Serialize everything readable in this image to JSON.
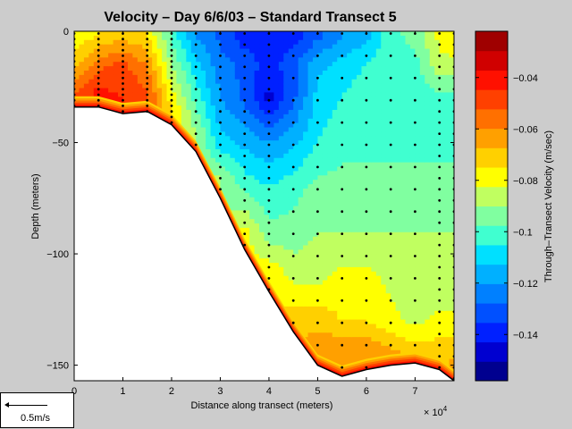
{
  "chart_data": {
    "type": "heatmap",
    "title": "Velocity – Day 6/6/03 – Standard Transect 5",
    "xlabel": "Distance along transect (meters)",
    "ylabel": "Depth (meters)",
    "x_exponent_label": "× 10",
    "x_exponent_power": "4",
    "xlim": [
      0,
      78000
    ],
    "ylim": [
      -157,
      0
    ],
    "xticks": [
      0,
      1,
      2,
      3,
      4,
      5,
      6,
      7
    ],
    "xtick_labels": [
      "0",
      "1",
      "2",
      "3",
      "4",
      "5",
      "6",
      "7"
    ],
    "yticks": [
      0,
      -50,
      -100,
      -150
    ],
    "ytick_labels": [
      "0",
      "−50",
      "−100",
      "−150"
    ],
    "colorbar": {
      "label": "Through–Transect Velocity (m/sec)",
      "range": [
        -0.158,
        -0.022
      ],
      "ticks": [
        -0.04,
        -0.06,
        -0.08,
        -0.1,
        -0.12,
        -0.14
      ],
      "tick_labels": [
        "−0.04",
        "−0.06",
        "−0.08",
        "−0.1",
        "−0.12",
        "−0.14"
      ],
      "colors": [
        "#00008f",
        "#0000d0",
        "#0020ff",
        "#0050ff",
        "#0080ff",
        "#00b0ff",
        "#00e0ff",
        "#40ffd0",
        "#80ffa0",
        "#c0ff60",
        "#ffff00",
        "#ffd000",
        "#ffa000",
        "#ff7000",
        "#ff4000",
        "#ff1000",
        "#d00000",
        "#9f0000"
      ]
    },
    "bottom_profile": [
      [
        0,
        -34
      ],
      [
        5000,
        -34
      ],
      [
        10000,
        -37
      ],
      [
        15000,
        -36
      ],
      [
        20000,
        -42
      ],
      [
        25000,
        -54
      ],
      [
        30000,
        -75
      ],
      [
        35000,
        -98
      ],
      [
        40000,
        -117
      ],
      [
        45000,
        -135
      ],
      [
        50000,
        -150
      ],
      [
        55000,
        -155
      ],
      [
        60000,
        -152
      ],
      [
        65000,
        -150
      ],
      [
        70000,
        -149
      ],
      [
        75000,
        -152
      ],
      [
        78000,
        -157
      ]
    ],
    "velocity_field": [
      {
        "x": 0,
        "d": [
          [
            -2,
            -0.08
          ],
          [
            -15,
            -0.07
          ],
          [
            -30,
            -0.05
          ]
        ]
      },
      {
        "x": 5000,
        "d": [
          [
            -2,
            -0.075
          ],
          [
            -15,
            -0.055
          ],
          [
            -30,
            -0.04
          ]
        ]
      },
      {
        "x": 10000,
        "d": [
          [
            -2,
            -0.07
          ],
          [
            -15,
            -0.05
          ],
          [
            -30,
            -0.045
          ]
        ]
      },
      {
        "x": 15000,
        "d": [
          [
            -2,
            -0.075
          ],
          [
            -15,
            -0.06
          ],
          [
            -30,
            -0.05
          ]
        ]
      },
      {
        "x": 20000,
        "d": [
          [
            -2,
            -0.1
          ],
          [
            -15,
            -0.09
          ],
          [
            -35,
            -0.075
          ]
        ]
      },
      {
        "x": 25000,
        "d": [
          [
            -2,
            -0.12
          ],
          [
            -15,
            -0.11
          ],
          [
            -30,
            -0.1
          ],
          [
            -45,
            -0.09
          ]
        ]
      },
      {
        "x": 30000,
        "d": [
          [
            -2,
            -0.13
          ],
          [
            -15,
            -0.125
          ],
          [
            -30,
            -0.12
          ],
          [
            -50,
            -0.11
          ],
          [
            -65,
            -0.09
          ]
        ]
      },
      {
        "x": 35000,
        "d": [
          [
            -2,
            -0.14
          ],
          [
            -15,
            -0.13
          ],
          [
            -30,
            -0.13
          ],
          [
            -50,
            -0.115
          ],
          [
            -70,
            -0.1
          ],
          [
            -90,
            -0.08
          ]
        ]
      },
      {
        "x": 40000,
        "d": [
          [
            -2,
            -0.14
          ],
          [
            -15,
            -0.14
          ],
          [
            -30,
            -0.145
          ],
          [
            -50,
            -0.12
          ],
          [
            -70,
            -0.105
          ],
          [
            -90,
            -0.095
          ],
          [
            -110,
            -0.075
          ]
        ]
      },
      {
        "x": 45000,
        "d": [
          [
            -2,
            -0.14
          ],
          [
            -15,
            -0.13
          ],
          [
            -30,
            -0.13
          ],
          [
            -50,
            -0.115
          ],
          [
            -70,
            -0.1
          ],
          [
            -90,
            -0.095
          ],
          [
            -110,
            -0.085
          ],
          [
            -130,
            -0.07
          ]
        ]
      },
      {
        "x": 50000,
        "d": [
          [
            -2,
            -0.13
          ],
          [
            -15,
            -0.115
          ],
          [
            -30,
            -0.11
          ],
          [
            -50,
            -0.105
          ],
          [
            -70,
            -0.095
          ],
          [
            -90,
            -0.09
          ],
          [
            -110,
            -0.085
          ],
          [
            -130,
            -0.07
          ],
          [
            -145,
            -0.06
          ]
        ]
      },
      {
        "x": 55000,
        "d": [
          [
            -2,
            -0.12
          ],
          [
            -15,
            -0.11
          ],
          [
            -30,
            -0.105
          ],
          [
            -50,
            -0.1
          ],
          [
            -70,
            -0.095
          ],
          [
            -90,
            -0.09
          ],
          [
            -110,
            -0.08
          ],
          [
            -130,
            -0.075
          ],
          [
            -145,
            -0.06
          ]
        ]
      },
      {
        "x": 60000,
        "d": [
          [
            -2,
            -0.115
          ],
          [
            -15,
            -0.105
          ],
          [
            -30,
            -0.1
          ],
          [
            -50,
            -0.1
          ],
          [
            -70,
            -0.095
          ],
          [
            -90,
            -0.09
          ],
          [
            -110,
            -0.08
          ],
          [
            -130,
            -0.075
          ],
          [
            -145,
            -0.06
          ]
        ]
      },
      {
        "x": 65000,
        "d": [
          [
            -2,
            -0.1
          ],
          [
            -15,
            -0.1
          ],
          [
            -30,
            -0.1
          ],
          [
            -50,
            -0.1
          ],
          [
            -70,
            -0.095
          ],
          [
            -90,
            -0.09
          ],
          [
            -110,
            -0.085
          ],
          [
            -130,
            -0.08
          ],
          [
            -145,
            -0.065
          ]
        ]
      },
      {
        "x": 70000,
        "d": [
          [
            -2,
            -0.095
          ],
          [
            -15,
            -0.1
          ],
          [
            -30,
            -0.105
          ],
          [
            -50,
            -0.1
          ],
          [
            -70,
            -0.095
          ],
          [
            -90,
            -0.09
          ],
          [
            -110,
            -0.09
          ],
          [
            -130,
            -0.085
          ],
          [
            -145,
            -0.07
          ]
        ]
      },
      {
        "x": 75000,
        "d": [
          [
            -2,
            -0.08
          ],
          [
            -15,
            -0.085
          ],
          [
            -30,
            -0.1
          ],
          [
            -50,
            -0.1
          ],
          [
            -70,
            -0.095
          ],
          [
            -90,
            -0.09
          ],
          [
            -110,
            -0.09
          ],
          [
            -130,
            -0.08
          ],
          [
            -145,
            -0.07
          ]
        ]
      },
      {
        "x": 78000,
        "d": [
          [
            -2,
            -0.075
          ],
          [
            -15,
            -0.085
          ],
          [
            -30,
            -0.1
          ],
          [
            -50,
            -0.1
          ],
          [
            -70,
            -0.095
          ],
          [
            -90,
            -0.09
          ],
          [
            -110,
            -0.09
          ],
          [
            -130,
            -0.08
          ],
          [
            -150,
            -0.065
          ]
        ]
      }
    ],
    "sample_columns": [
      {
        "x": 0,
        "step": 2.5
      },
      {
        "x": 5000,
        "step": 2.5
      },
      {
        "x": 10000,
        "step": 2.5
      },
      {
        "x": 15000,
        "step": 2.5
      },
      {
        "x": 20000,
        "step": 2.5
      },
      {
        "x": 25000,
        "step": 5
      },
      {
        "x": 30000,
        "step": 5
      },
      {
        "x": 35000,
        "step": 5
      },
      {
        "x": 40000,
        "step": 5
      },
      {
        "x": 45000,
        "step": 10
      },
      {
        "x": 50000,
        "step": 10
      },
      {
        "x": 55000,
        "step": 10
      },
      {
        "x": 60000,
        "step": 10
      },
      {
        "x": 65000,
        "step": 10
      },
      {
        "x": 70000,
        "step": 10
      },
      {
        "x": 75000,
        "step": 5
      },
      {
        "x": 78000,
        "step": 5
      }
    ]
  },
  "scale_legend": {
    "label": "0.5m/s"
  }
}
